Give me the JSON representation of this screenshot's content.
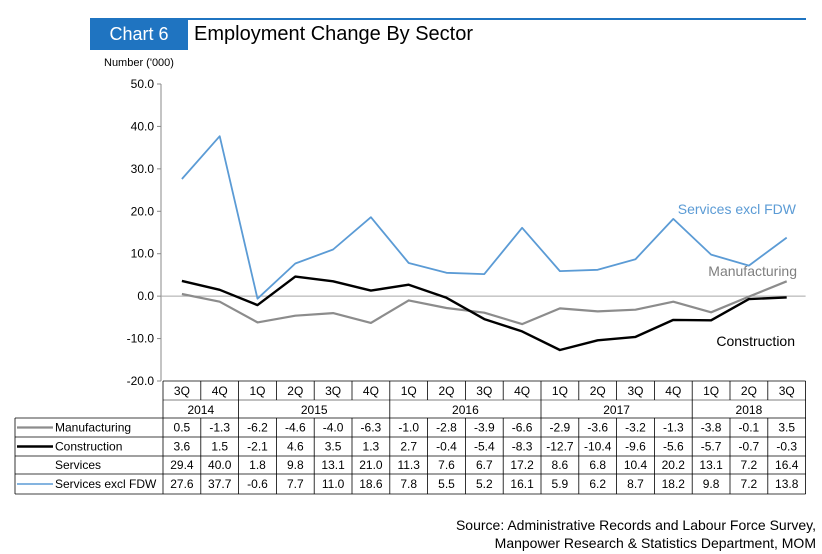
{
  "header": {
    "chart_label": "Chart 6",
    "title": "Employment Change By Sector"
  },
  "source": {
    "line1": "Source: Administrative Records and Labour Force Survey,",
    "line2": "Manpower Research & Statistics Department, MOM"
  },
  "colors": {
    "accent": "#1f74c1",
    "manufacturing": "#8c8c8c",
    "construction": "#000000",
    "services_excl_fdw": "#5b9bd5"
  },
  "chart_data": {
    "type": "line",
    "title": "Employment Change By Sector",
    "ylabel": "Number ('000)",
    "xlabel": "",
    "ylim": [
      -20,
      50
    ],
    "yticks": [
      "50.0",
      "40.0",
      "30.0",
      "20.0",
      "10.0",
      "0.0",
      "-10.0",
      "-20.0"
    ],
    "grid": false,
    "quarters": [
      "3Q",
      "4Q",
      "1Q",
      "2Q",
      "3Q",
      "4Q",
      "1Q",
      "2Q",
      "3Q",
      "4Q",
      "1Q",
      "2Q",
      "3Q",
      "4Q",
      "1Q",
      "2Q",
      "3Q"
    ],
    "years": [
      "2014",
      "2015",
      "2016",
      "2017",
      "2018"
    ],
    "series": [
      {
        "name": "Manufacturing",
        "label": "Manufacturing",
        "values": [
          0.5,
          -1.3,
          -6.2,
          -4.6,
          -4.0,
          -6.3,
          -1.0,
          -2.8,
          -3.9,
          -6.6,
          -2.9,
          -3.6,
          -3.2,
          -1.3,
          -3.8,
          -0.1,
          3.5
        ],
        "display": [
          "0.5",
          "-1.3",
          "-6.2",
          "-4.6",
          "-4.0",
          "-6.3",
          "-1.0",
          "-2.8",
          "-3.9",
          "-6.6",
          "-2.9",
          "-3.6",
          "-3.2",
          "-1.3",
          "-3.8",
          "-0.1",
          "3.5"
        ],
        "plotted": true
      },
      {
        "name": "Construction",
        "label": "Construction",
        "values": [
          3.6,
          1.5,
          -2.1,
          4.6,
          3.5,
          1.3,
          2.7,
          -0.4,
          -5.4,
          -8.3,
          -12.7,
          -10.4,
          -9.6,
          -5.6,
          -5.7,
          -0.7,
          -0.3
        ],
        "display": [
          "3.6",
          "1.5",
          "-2.1",
          "4.6",
          "3.5",
          "1.3",
          "2.7",
          "-0.4",
          "-5.4",
          "-8.3",
          "-12.7",
          "-10.4",
          "-9.6",
          "-5.6",
          "-5.7",
          "-0.7",
          "-0.3"
        ],
        "plotted": true
      },
      {
        "name": "Services",
        "values": [
          29.4,
          40.0,
          1.8,
          9.8,
          13.1,
          21.0,
          11.3,
          7.6,
          6.7,
          17.2,
          8.6,
          6.8,
          10.4,
          20.2,
          13.1,
          7.2,
          16.4
        ],
        "display": [
          "29.4",
          "40.0",
          "1.8",
          "9.8",
          "13.1",
          "21.0",
          "11.3",
          "7.6",
          "6.7",
          "17.2",
          "8.6",
          "6.8",
          "10.4",
          "20.2",
          "13.1",
          "7.2",
          "16.4"
        ],
        "plotted": false
      },
      {
        "name": "Services excl FDW",
        "label": "Services excl FDW",
        "values": [
          27.6,
          37.7,
          -0.6,
          7.7,
          11.0,
          18.6,
          7.8,
          5.5,
          5.2,
          16.1,
          5.9,
          6.2,
          8.7,
          18.2,
          9.8,
          7.2,
          13.8
        ],
        "display": [
          "27.6",
          "37.7",
          "-0.6",
          "7.7",
          "11.0",
          "18.6",
          "7.8",
          "5.5",
          "5.2",
          "16.1",
          "5.9",
          "6.2",
          "8.7",
          "18.2",
          "9.8",
          "7.2",
          "13.8"
        ],
        "plotted": true
      }
    ]
  }
}
